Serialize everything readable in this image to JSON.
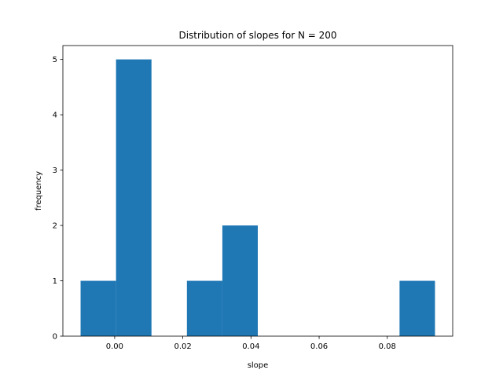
{
  "chart_data": {
    "type": "bar",
    "title": "Distribution of slopes for N = 200",
    "xlabel": "slope",
    "ylabel": "frequency",
    "bar_color": "#1f77b4",
    "bins": [
      {
        "x0": -0.01,
        "x1": 0.0004,
        "value": 1
      },
      {
        "x0": 0.0004,
        "x1": 0.0108,
        "value": 5
      },
      {
        "x0": 0.0108,
        "x1": 0.0212,
        "value": 0
      },
      {
        "x0": 0.0212,
        "x1": 0.0316,
        "value": 1
      },
      {
        "x0": 0.0316,
        "x1": 0.042,
        "value": 2
      },
      {
        "x0": 0.042,
        "x1": 0.0524,
        "value": 0
      },
      {
        "x0": 0.0524,
        "x1": 0.0628,
        "value": 0
      },
      {
        "x0": 0.0628,
        "x1": 0.0732,
        "value": 0
      },
      {
        "x0": 0.0732,
        "x1": 0.0836,
        "value": 0
      },
      {
        "x0": 0.0836,
        "x1": 0.094,
        "value": 1
      }
    ],
    "xlim": [
      -0.0152,
      0.0992
    ],
    "ylim": [
      0,
      5.25
    ],
    "x_ticks": [
      {
        "value": 0.0,
        "label": "0.00"
      },
      {
        "value": 0.02,
        "label": "0.02"
      },
      {
        "value": 0.04,
        "label": "0.04"
      },
      {
        "value": 0.06,
        "label": "0.06"
      },
      {
        "value": 0.08,
        "label": "0.08"
      }
    ],
    "y_ticks": [
      {
        "value": 0,
        "label": "0"
      },
      {
        "value": 1,
        "label": "1"
      },
      {
        "value": 2,
        "label": "2"
      },
      {
        "value": 3,
        "label": "3"
      },
      {
        "value": 4,
        "label": "4"
      },
      {
        "value": 5,
        "label": "5"
      }
    ],
    "grid": false,
    "legend": "none"
  }
}
